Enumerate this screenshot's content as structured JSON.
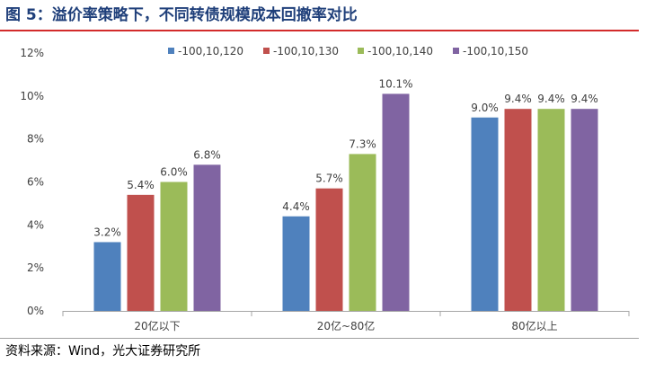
{
  "title": "图 5：溢价率策略下，不同转债规模成本回撤率对比",
  "source": "资料来源：Wind，光大证券研究所",
  "chart_data": {
    "type": "bar",
    "categories": [
      "20亿以下",
      "20亿~80亿",
      "80亿以上"
    ],
    "series": [
      {
        "name": "-100,10,120",
        "color": "#4f81bd",
        "values": [
          3.2,
          4.4,
          9.0
        ],
        "labels": [
          "3.2%",
          "4.4%",
          "9.0%"
        ]
      },
      {
        "name": "-100,10,130",
        "color": "#c0504d",
        "values": [
          5.4,
          5.7,
          9.4
        ],
        "labels": [
          "5.4%",
          "5.7%",
          "9.4%"
        ]
      },
      {
        "name": "-100,10,140",
        "color": "#9bbb59",
        "values": [
          6.0,
          7.3,
          9.4
        ],
        "labels": [
          "6.0%",
          "7.3%",
          "9.4%"
        ]
      },
      {
        "name": "-100,10,150",
        "color": "#8064a2",
        "values": [
          6.8,
          10.1,
          9.4
        ],
        "labels": [
          "6.8%",
          "10.1%",
          "9.4%"
        ]
      }
    ],
    "yticks": [
      "0%",
      "2%",
      "4%",
      "6%",
      "8%",
      "10%",
      "12%"
    ],
    "ylim": [
      0,
      12
    ],
    "grid": false,
    "legend": "top"
  }
}
